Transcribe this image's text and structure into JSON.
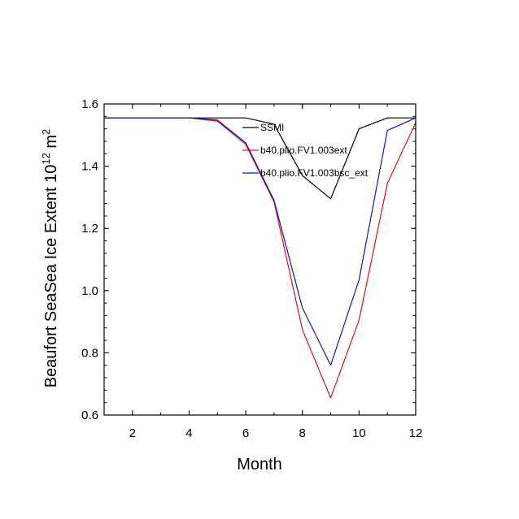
{
  "chart_data": {
    "type": "line",
    "xlabel": "Month",
    "ylabel": {
      "prefix": "Beaufort SeaSea Ice Extent 10",
      "exponent": "12",
      "unit": " m",
      "unit_exponent": "2"
    },
    "xlim": [
      1,
      12
    ],
    "ylim": [
      0.6,
      1.6
    ],
    "xticks": [
      2,
      4,
      6,
      8,
      10,
      12
    ],
    "yticks": [
      0.6,
      0.8,
      1.0,
      1.2,
      1.4,
      1.6
    ],
    "ytick_labels": [
      "0.6",
      "0.8",
      "1.0",
      "1.2",
      "1.4",
      "1.6"
    ],
    "grid": false,
    "legend": "top-right",
    "x": [
      1,
      2,
      3,
      4,
      5,
      6,
      7,
      8,
      9,
      10,
      11,
      12
    ],
    "series": [
      {
        "name": "SSMI",
        "color": "#000000",
        "values": [
          1.555,
          1.555,
          1.555,
          1.555,
          1.555,
          1.555,
          1.535,
          1.37,
          1.295,
          1.52,
          1.555,
          1.555
        ]
      },
      {
        "name": "b40.plio.FV1.003ext",
        "color": "#e01010",
        "values": [
          1.555,
          1.555,
          1.555,
          1.555,
          1.545,
          1.47,
          1.285,
          0.875,
          0.655,
          0.905,
          1.345,
          1.54
        ]
      },
      {
        "name": "b40.plio.FV1.003bsc_ext",
        "color": "#1010d0",
        "values": [
          1.555,
          1.555,
          1.555,
          1.555,
          1.548,
          1.475,
          1.29,
          0.945,
          0.76,
          1.035,
          1.515,
          1.555
        ]
      }
    ]
  }
}
